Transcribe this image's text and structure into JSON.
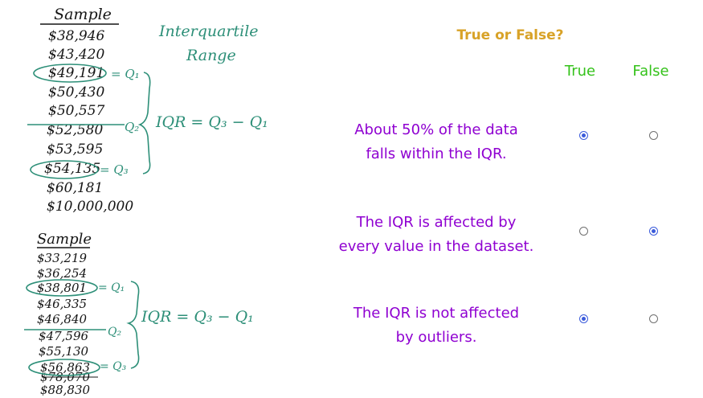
{
  "sketch": {
    "top": {
      "heading": "Sample",
      "values": [
        "$38,946",
        "$43,420",
        "$49,191",
        "$50,430",
        "$50,557",
        "$52,580",
        "$53,595",
        "$54,135",
        "$60,181",
        "$10,000,000"
      ],
      "q1_label": "= Q₁",
      "q2_label": "Q₂",
      "q3_label": "= Q₃",
      "formula": "IQR = Q₃ − Q₁"
    },
    "title_line1": "Interquartile",
    "title_line2": "Range",
    "bottom": {
      "heading": "Sample",
      "values": [
        "$33,219",
        "$36,254",
        "$38,801",
        "$46,335",
        "$46,840",
        "$47,596",
        "$55,130",
        "$56,863",
        "$78,070",
        "$88,830"
      ],
      "q1_label": "= Q₁",
      "q2_label": "Q₂",
      "q3_label": "= Q₃",
      "formula": "IQR = Q₃ − Q₁"
    }
  },
  "quiz": {
    "title": "True or False?",
    "true_label": "True",
    "false_label": "False",
    "items": [
      {
        "line1": "About 50% of the data",
        "line2": "falls within the IQR.",
        "selected": "true"
      },
      {
        "line1": "The IQR is affected by",
        "line2": "every value in the dataset.",
        "selected": "false"
      },
      {
        "line1": "The IQR is not affected",
        "line2": "by outliers.",
        "selected": "true"
      }
    ]
  },
  "colors": {
    "ink": "#151515",
    "teal": "#2d8f78",
    "title_gold": "#d8a227",
    "true_false_green": "#34c21a",
    "statement_purple": "#8f00d1",
    "radio_blue": "#3b5bdb"
  }
}
